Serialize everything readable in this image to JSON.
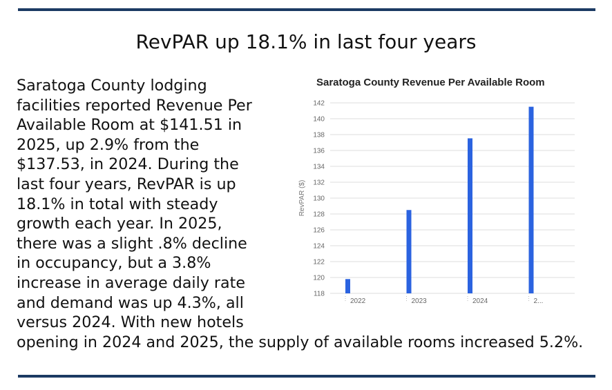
{
  "headline": "RevPAR up 18.1% in last four years",
  "body": {
    "paragraph": "Saratoga County lodging facilities reported Revenue Per Available Room at $141.51 in 2025, up 2.9% from the $137.53, in 2024. During the last four years, RevPAR is up 18.1% in total with steady growth each year. In 2025, there was a slight .8% decline in occupancy, but a 3.8% increase in average daily rate and demand was up 4.3%, all versus 2024. With new hotels",
    "continuation": "opening in 2024 and 2025, the supply of available rooms increased 5.2%."
  },
  "colors": {
    "rule": "#1b3a63",
    "bar": "#2b63e0",
    "grid": "#dddddd"
  },
  "chart_data": {
    "type": "bar",
    "title": "Saratoga County Revenue Per Available Room",
    "ylabel": "RevPAR ($)",
    "xlabel": "",
    "categories": [
      "2022",
      "2023",
      "2024",
      "2..."
    ],
    "values": [
      119.8,
      128.5,
      137.53,
      141.51
    ],
    "ylim": [
      118,
      142
    ],
    "yticks": [
      "118",
      "120",
      "122",
      "124",
      "126",
      "128",
      "130",
      "132",
      "134",
      "136",
      "138",
      "140",
      "142"
    ],
    "grid": true
  }
}
